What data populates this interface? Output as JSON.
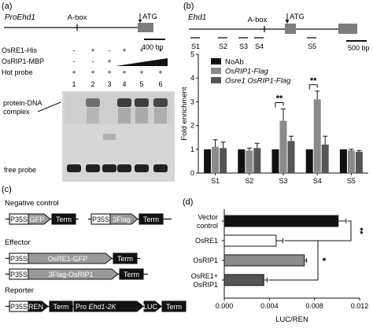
{
  "panel_a": {
    "label": "(a)",
    "gene": "ProEhd1",
    "abox": "A-box",
    "atg": "ATG",
    "scale": "400 bp",
    "row_labels": [
      "OsRE1-His",
      "OsRIP1-MBP",
      "Hot probe"
    ],
    "rows": [
      [
        "-",
        "+",
        "-",
        "+",
        "+",
        "+"
      ],
      [
        "-",
        "-",
        "+",
        "",
        "",
        ""
      ],
      [
        "+",
        "+",
        "+",
        "+",
        "+",
        "+"
      ]
    ],
    "lanes": [
      "1",
      "2",
      "3",
      "4",
      "5",
      "6"
    ],
    "complex_label_1": "protein-DNA",
    "complex_label_2": "complex",
    "free_label": "free probe"
  },
  "panel_b": {
    "label": "(b)",
    "gene": "Ehd1",
    "abox": "A-box",
    "atg": "ATG",
    "scale": "500 bp",
    "sites": [
      "S1",
      "S2",
      "S3",
      "S4",
      "S5"
    ],
    "significance": [
      "**",
      "**"
    ]
  },
  "panel_c": {
    "label": "(c)",
    "sections": [
      "Negative control",
      "Effector",
      "Reporter"
    ],
    "p35s": "P35S",
    "gfp": "GFP",
    "flag3": "3Flag",
    "term": "Term",
    "osre1gfp": "OsRE1-GFP",
    "flagosrip1": "3Flag-OsRIP1",
    "ren": "REN",
    "pro_ehd1": "Pro",
    "pro_ehd1_b": "Ehd1-2K",
    "luc": "LUC"
  },
  "panel_d": {
    "label": "(d)",
    "significance": [
      "**",
      "*"
    ]
  },
  "chart_data": [
    {
      "type": "bar",
      "title": "",
      "xlabel": "",
      "ylabel": "Fold enrichment",
      "ylim": [
        0,
        5
      ],
      "yticks": [
        0,
        1,
        2,
        3,
        4,
        5
      ],
      "categories": [
        "S1",
        "S2",
        "S3",
        "S4",
        "S5"
      ],
      "legend_position": "top-left",
      "series": [
        {
          "name": "NoAb",
          "color": "#111111",
          "values": [
            1.0,
            1.0,
            1.0,
            1.0,
            1.0
          ],
          "errors": [
            0.0,
            0.0,
            0.0,
            0.0,
            0.0
          ]
        },
        {
          "name": "OsRIP1-Flag",
          "color": "#8a8a8a",
          "values": [
            1.1,
            0.95,
            2.2,
            3.1,
            0.95
          ],
          "errors": [
            0.3,
            0.1,
            0.5,
            0.35,
            0.05
          ]
        },
        {
          "name": "Osre1 OsRIP1-Flag",
          "color": "#555555",
          "values": [
            1.05,
            1.05,
            1.35,
            1.2,
            0.9
          ],
          "errors": [
            0.25,
            0.2,
            0.2,
            0.35,
            0.05
          ]
        }
      ]
    },
    {
      "type": "bar",
      "orientation": "horizontal",
      "title": "",
      "xlabel": "LUC/REN",
      "ylabel": "",
      "xlim": [
        0,
        0.012
      ],
      "xticks": [
        "0.000",
        "0.004",
        "0.008",
        "0.012"
      ],
      "categories": [
        "Vector control",
        "OsRE1",
        "OsRIP1",
        "OsRE1+ OsRIP1"
      ],
      "values": [
        0.0101,
        0.0046,
        0.0071,
        0.0035
      ],
      "errors": [
        0.0007,
        0.0006,
        0.0002,
        0.0003
      ],
      "colors": [
        "#111111",
        "#ffffff",
        "#8a8a8a",
        "#555555"
      ]
    }
  ]
}
